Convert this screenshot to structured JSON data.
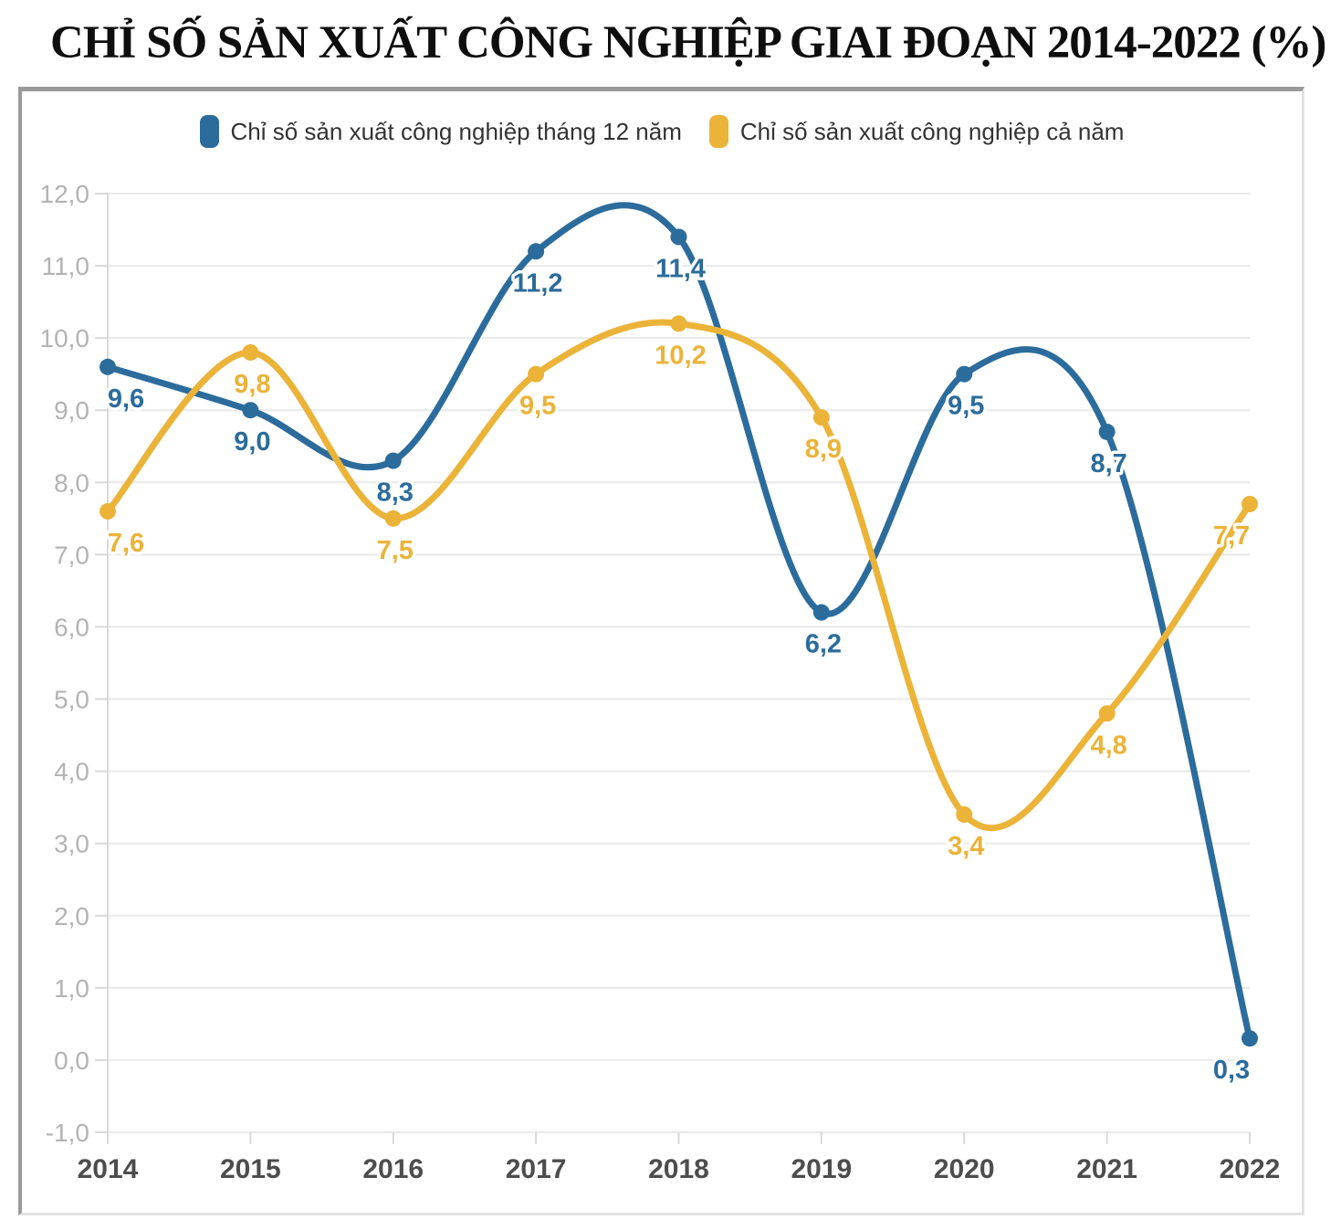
{
  "title": "CHỈ SỐ SẢN XUẤT CÔNG NGHIỆP GIAI ĐOẠN 2014-2022 (%)",
  "legend": {
    "items": [
      {
        "label": "Chỉ số sản xuất công nghiệp tháng 12 năm",
        "color": "#2b6c9c"
      },
      {
        "label": "Chỉ số sản xuất công nghiệp cả năm",
        "color": "#ebb338"
      }
    ]
  },
  "chart_data": {
    "type": "line",
    "title": "CHỈ SỐ SẢN XUẤT CÔNG NGHIỆP GIAI ĐOẠN 2014-2022 (%)",
    "categories": [
      "2014",
      "2015",
      "2016",
      "2017",
      "2018",
      "2019",
      "2020",
      "2021",
      "2022"
    ],
    "series": [
      {
        "name": "Chỉ số sản xuất công nghiệp tháng 12 năm",
        "color": "#2b6c9c",
        "values": [
          9.6,
          9.0,
          8.3,
          11.2,
          11.4,
          6.2,
          9.5,
          8.7,
          0.3
        ],
        "labels": [
          "9,6",
          "9,0",
          "8,3",
          "11,2",
          "11,4",
          "6,2",
          "9,5",
          "8,7",
          "0,3"
        ]
      },
      {
        "name": "Chỉ số sản xuất công nghiệp cả năm",
        "color": "#ebb338",
        "values": [
          7.6,
          9.8,
          7.5,
          9.5,
          10.2,
          8.9,
          3.4,
          4.8,
          7.7
        ],
        "labels": [
          "7,6",
          "9,8",
          "7,5",
          "9,5",
          "10,2",
          "8,9",
          "3,4",
          "4,8",
          "7,7"
        ]
      }
    ],
    "ylim": [
      -1,
      12
    ],
    "yticks": [
      {
        "v": 12,
        "label": "12,0"
      },
      {
        "v": 11,
        "label": "11,0"
      },
      {
        "v": 10,
        "label": "10,0"
      },
      {
        "v": 9,
        "label": "9,0"
      },
      {
        "v": 8,
        "label": "8,0"
      },
      {
        "v": 7,
        "label": "7,0"
      },
      {
        "v": 6,
        "label": "6,0"
      },
      {
        "v": 5,
        "label": "5,0"
      },
      {
        "v": 4,
        "label": "4,0"
      },
      {
        "v": 3,
        "label": "3,0"
      },
      {
        "v": 2,
        "label": "2,0"
      },
      {
        "v": 1,
        "label": "1,0"
      },
      {
        "v": 0,
        "label": "0,0"
      },
      {
        "v": -1,
        "label": "-1,0"
      }
    ],
    "grid": true,
    "legend_position": "top",
    "colors": {
      "grid": "#e9e9e9",
      "axis": "#d9d9d9",
      "ytick_text": "#b3b3b3",
      "xtick_text": "#4d4d4d"
    }
  }
}
